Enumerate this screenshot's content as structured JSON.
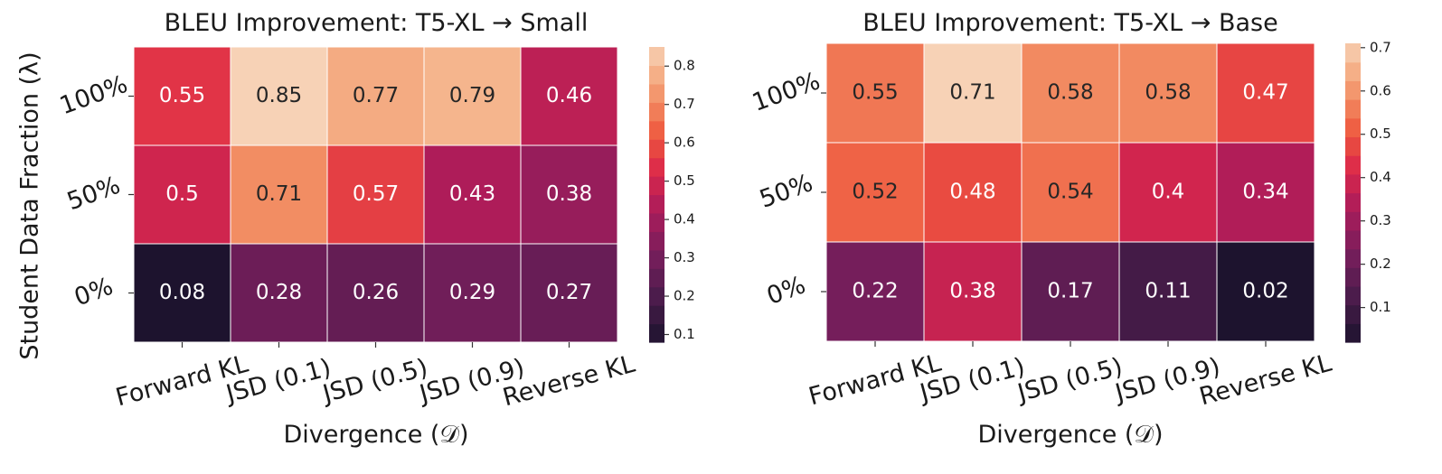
{
  "figure": {
    "ylabel": "Student Data Fraction (λ)"
  },
  "chart_data": [
    {
      "type": "heatmap",
      "title": "BLEU Improvement: T5-XL → Small",
      "xlabel": "Divergence (𝒟)",
      "ylabel": "Student Data Fraction (λ)",
      "x": [
        "Forward KL",
        "JSD (0.1)",
        "JSD (0.5)",
        "JSD (0.9)",
        "Reverse KL"
      ],
      "y": [
        "100%",
        "50%",
        "0%"
      ],
      "values": [
        [
          0.55,
          0.85,
          0.77,
          0.79,
          0.46
        ],
        [
          0.5,
          0.71,
          0.57,
          0.43,
          0.38
        ],
        [
          0.08,
          0.28,
          0.26,
          0.29,
          0.27
        ]
      ],
      "value_labels": [
        [
          "0.55",
          "0.85",
          "0.77",
          "0.79",
          "0.46"
        ],
        [
          "0.5",
          "0.71",
          "0.57",
          "0.43",
          "0.38"
        ],
        [
          "0.08",
          "0.28",
          "0.26",
          "0.29",
          "0.27"
        ]
      ],
      "colorbar": {
        "range": [
          0.08,
          0.85
        ],
        "ticks": [
          0.1,
          0.2,
          0.3,
          0.4,
          0.5,
          0.6,
          0.7,
          0.8
        ],
        "tick_labels": [
          "0.1",
          "0.2",
          "0.3",
          "0.4",
          "0.5",
          "0.6",
          "0.7",
          "0.8"
        ]
      },
      "colormap": "rocket"
    },
    {
      "type": "heatmap",
      "title": "BLEU Improvement: T5-XL → Base",
      "xlabel": "Divergence (𝒟)",
      "ylabel": "",
      "x": [
        "Forward KL",
        "JSD (0.1)",
        "JSD (0.5)",
        "JSD (0.9)",
        "Reverse KL"
      ],
      "y": [
        "100%",
        "50%",
        "0%"
      ],
      "values": [
        [
          0.55,
          0.71,
          0.58,
          0.58,
          0.47
        ],
        [
          0.52,
          0.48,
          0.54,
          0.4,
          0.34
        ],
        [
          0.22,
          0.38,
          0.17,
          0.11,
          0.02
        ]
      ],
      "value_labels": [
        [
          "0.55",
          "0.71",
          "0.58",
          "0.58",
          "0.47"
        ],
        [
          "0.52",
          "0.48",
          "0.54",
          "0.4",
          "0.34"
        ],
        [
          "0.22",
          "0.38",
          "0.17",
          "0.11",
          "0.02"
        ]
      ],
      "colorbar": {
        "range": [
          0.02,
          0.71
        ],
        "ticks": [
          0.1,
          0.2,
          0.3,
          0.4,
          0.5,
          0.6,
          0.7
        ],
        "tick_labels": [
          "0.1",
          "0.2",
          "0.3",
          "0.4",
          "0.5",
          "0.6",
          "0.7"
        ]
      },
      "colormap": "rocket"
    }
  ]
}
